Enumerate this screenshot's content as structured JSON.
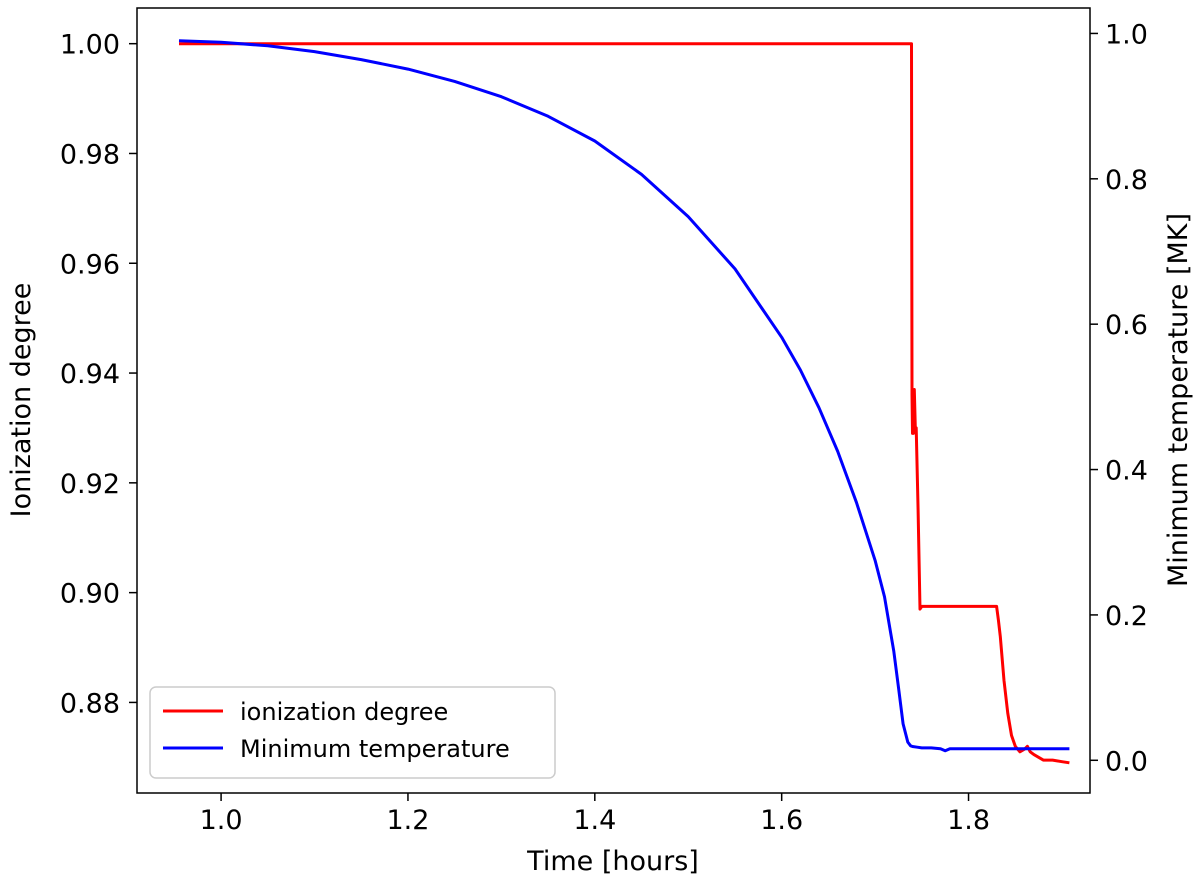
{
  "chart_data": {
    "type": "line",
    "xlabel": "Time [hours]",
    "ylabel_left": "Ionization degree",
    "ylabel_right": "Minimum temperature [MK]",
    "xlim": [
      0.91,
      1.93
    ],
    "ylim_left": [
      0.8635,
      1.0065
    ],
    "ylim_right": [
      -0.045,
      1.035
    ],
    "x_ticks": [
      1.0,
      1.2,
      1.4,
      1.6,
      1.8
    ],
    "x_tick_labels": [
      "1.0",
      "1.2",
      "1.4",
      "1.6",
      "1.8"
    ],
    "y_left_ticks": [
      0.88,
      0.9,
      0.92,
      0.94,
      0.96,
      0.98,
      1.0
    ],
    "y_left_tick_labels": [
      "0.88",
      "0.90",
      "0.92",
      "0.94",
      "0.96",
      "0.98",
      "1.00"
    ],
    "y_right_ticks": [
      0.0,
      0.2,
      0.4,
      0.6,
      0.8,
      1.0
    ],
    "y_right_tick_labels": [
      "0.0",
      "0.2",
      "0.4",
      "0.6",
      "0.8",
      "1.0"
    ],
    "grid": false,
    "legend_position": "lower-left",
    "series": [
      {
        "name": "ionization degree",
        "axis": "left",
        "color": "#ff0000",
        "x": [
          0.955,
          1.739,
          1.7395,
          1.74,
          1.741,
          1.742,
          1.743,
          1.744,
          1.746,
          1.748,
          1.75,
          1.752,
          1.754,
          1.83,
          1.832,
          1.834,
          1.838,
          1.842,
          1.846,
          1.85,
          1.855,
          1.86,
          1.863,
          1.866,
          1.87,
          1.875,
          1.88,
          1.89,
          1.9,
          1.908
        ],
        "y": [
          1.0,
          1.0,
          0.936,
          0.929,
          0.929,
          0.937,
          0.93,
          0.93,
          0.915,
          0.897,
          0.8975,
          0.8975,
          0.8975,
          0.8975,
          0.895,
          0.892,
          0.884,
          0.878,
          0.874,
          0.872,
          0.871,
          0.8715,
          0.872,
          0.871,
          0.8705,
          0.87,
          0.8695,
          0.8695,
          0.8692,
          0.869
        ]
      },
      {
        "name": "Minimum temperature",
        "axis": "right",
        "color": "#0000ff",
        "x": [
          0.955,
          1.0,
          1.05,
          1.1,
          1.15,
          1.2,
          1.25,
          1.3,
          1.35,
          1.4,
          1.45,
          1.5,
          1.55,
          1.6,
          1.62,
          1.64,
          1.66,
          1.68,
          1.7,
          1.71,
          1.72,
          1.725,
          1.73,
          1.735,
          1.738,
          1.74,
          1.745,
          1.75,
          1.76,
          1.77,
          1.775,
          1.78,
          1.79,
          1.8,
          1.85,
          1.9,
          1.908
        ],
        "y": [
          0.99,
          0.988,
          0.983,
          0.975,
          0.964,
          0.951,
          0.934,
          0.913,
          0.886,
          0.852,
          0.806,
          0.748,
          0.676,
          0.582,
          0.537,
          0.485,
          0.425,
          0.355,
          0.275,
          0.225,
          0.15,
          0.1,
          0.05,
          0.025,
          0.02,
          0.019,
          0.018,
          0.017,
          0.017,
          0.016,
          0.013,
          0.016,
          0.016,
          0.016,
          0.016,
          0.016,
          0.016
        ]
      }
    ]
  }
}
